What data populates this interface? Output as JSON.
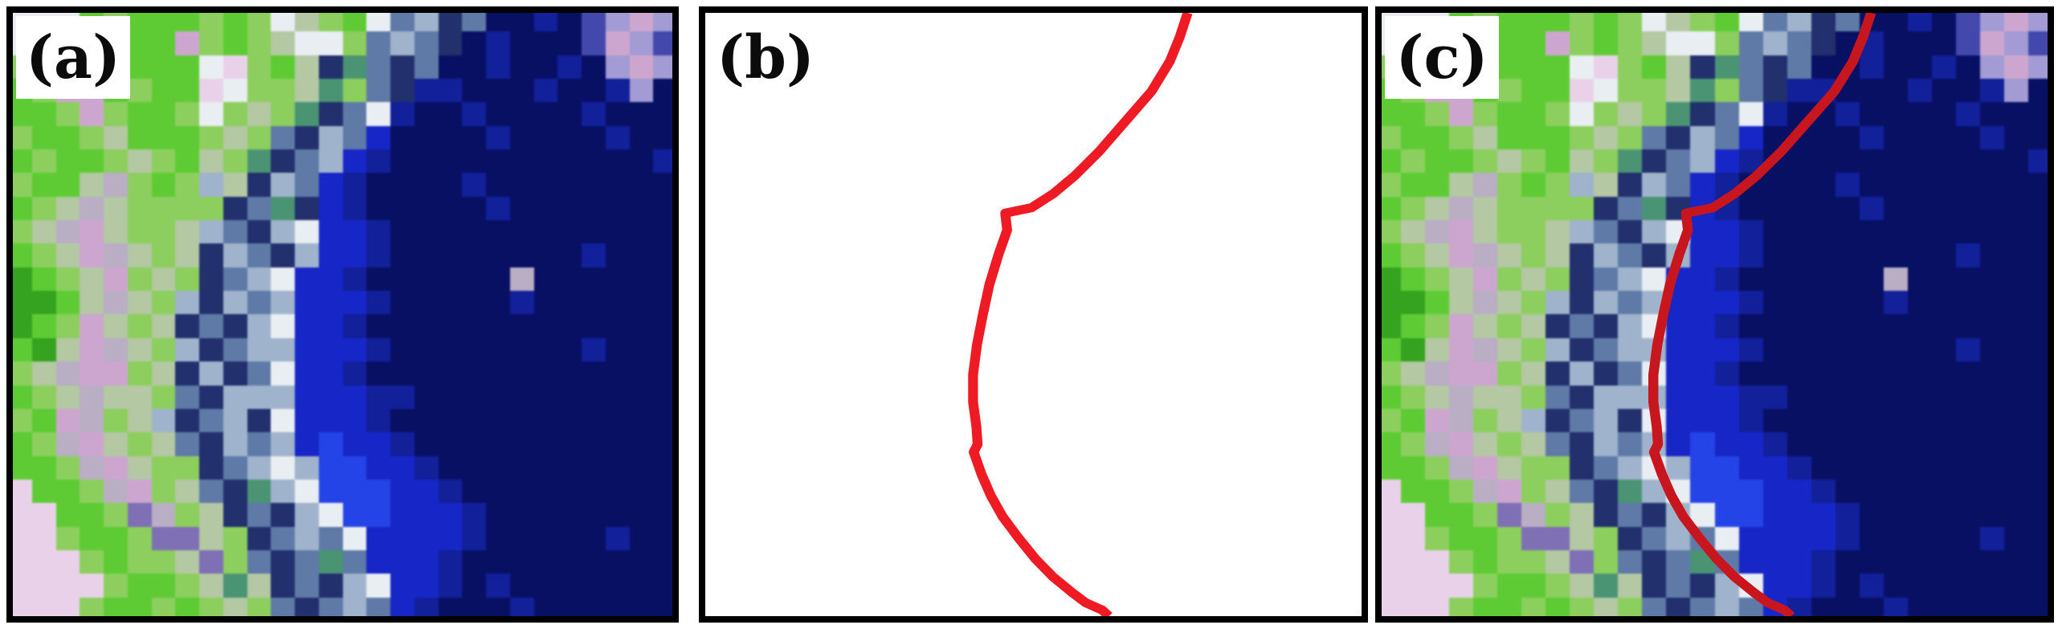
{
  "figure": {
    "background": "#ffffff",
    "frame_color": "#000000",
    "panels": [
      {
        "id": "a",
        "label": "(a)",
        "description": "false-color satellite image of a coastal zone: green vegetated land on the left, checkered built-up shore band, deep blue sea on the right"
      },
      {
        "id": "b",
        "label": "(b)",
        "description": "extracted shoreline shown as a red curve on a white background"
      },
      {
        "id": "c",
        "label": "(c)",
        "description": "same satellite image with the extracted red shoreline overlaid along the land-water boundary"
      }
    ]
  },
  "mosaic": {
    "cols": 28,
    "rows": 26,
    "palette": {
      "G": "#5ecb34",
      "g": "#8ccf5e",
      "d": "#35a31f",
      "e": "#b3c8a3",
      "T": "#4a9474",
      "P": "#cda6cf",
      "p": "#e9d2e9",
      "M": "#b9aec4",
      "U": "#7f6fb5",
      "W": "#e9eef2",
      "S": "#9fb3cc",
      "s": "#5f7aa6",
      "K": "#22306e",
      "N": "#081064",
      "n": "#12209a",
      "B": "#1726c6",
      "b": "#2444e8",
      "V": "#4348ac",
      "q": "#a29bd4"
    },
    "pixel_rows": [
      "WWWGgGGGgGgWegGWsSKsNNnNVqPq",
      "WWWgGGGPgGgeWWgsSsKNnNNNVPqV",
      "gGPPgGGGWpgGeKTsKsNNnNNnNqPq",
      "GgPPGgGGpWggeTgsKnnNNNnNNnqN",
      "GGgPgGGgWgegTKsWnNNnNNNNnNNN",
      "gGGgeGGGgegsKSsBNNNNnNNNNnNN",
      "GgGGgegGegTKsSBnNNNNNNNNNNNn",
      "gGGeMgGgSeKSsBnNNNNnNNNNNNNN",
      "GgeMeggggKsTKBnNNNNNnNNNNNNN",
      "geMPeggeSsKSWBBnNNNNNNNNNNNN",
      "GgePMegeKSsKSBBnNNNNNNNNnNNN",
      "dGgePgegKsSWBBnNNNNNNMNNNNNN",
      "ddGeMegSKSsSBBBnNNNNNnNNNNNN",
      "dGgPegeKsKSWBBnNNNNNNNNNNNNN",
      "GdePMegSKsSSBBBnNNNNNNNNnNNN",
      "geMPPgeKSKsWBBnNNNNNNNNNNNNN",
      "GgeMeegsKSSSBBBnnNNNNNNNNNNN",
      "gGPMgeSKsSKWBBBnNNNNNNNNNNNN",
      "GgMPegesKSsSBbBBnNNNNNNNNNNN",
      "GGgMPeggKsSWSbbBBnNNNNNNNNNN",
      "pGGgMPgesKTSWbbbBBnNNNNNNNNN",
      "ppGGgUMgeKsKSWbbBBBnNNNNNNNN",
      "ppgGGgUUegKsSsWBBBBnNNNNNnNN",
      "pppgGggeUgsKsTsBBBnNNNNNNNNN",
      "ppppgGGgeTeKsKSWBBnNnNNNNNNN",
      "pppgGGgGgegsKsSsBnNNNnNNNNNN"
    ]
  },
  "shoreline": {
    "color_panel_b": "#ee1b24",
    "color_panel_c": "#c8161f",
    "stroke_width": 1.5,
    "points": [
      [
        73.5,
        0
      ],
      [
        72.3,
        4
      ],
      [
        70.8,
        8
      ],
      [
        68,
        13
      ],
      [
        64,
        18
      ],
      [
        60,
        23
      ],
      [
        56.3,
        27
      ],
      [
        53,
        30
      ],
      [
        49.7,
        32.3
      ],
      [
        45.7,
        33.2
      ],
      [
        46,
        36
      ],
      [
        44.7,
        40
      ],
      [
        43.3,
        45
      ],
      [
        42.3,
        50
      ],
      [
        41.4,
        55
      ],
      [
        40.8,
        60
      ],
      [
        40.8,
        64.5
      ],
      [
        41.3,
        68.5
      ],
      [
        41.5,
        71.5
      ],
      [
        40.9,
        72.8
      ],
      [
        42.1,
        76.5
      ],
      [
        43.5,
        80
      ],
      [
        45.3,
        83.5
      ],
      [
        47.7,
        87
      ],
      [
        50.3,
        90.5
      ],
      [
        53,
        93.5
      ],
      [
        55.8,
        96
      ],
      [
        58,
        97.8
      ],
      [
        60.5,
        99
      ],
      [
        61.5,
        100
      ]
    ]
  }
}
